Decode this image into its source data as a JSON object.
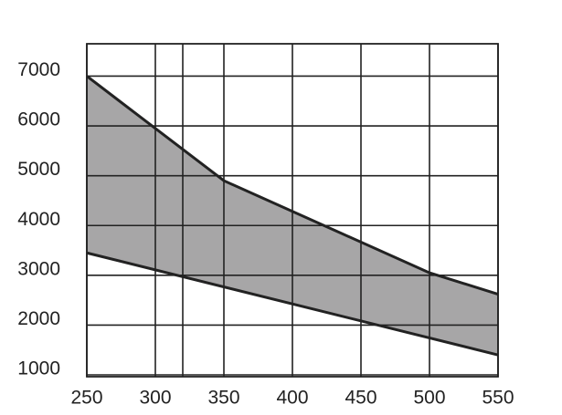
{
  "chart_data": {
    "type": "band",
    "series": [
      {
        "x": [
          250,
          350,
          500,
          550
        ],
        "values": [
          7000,
          4900,
          3050,
          2620
        ]
      },
      {
        "x": [
          250,
          550
        ],
        "values": [
          3450,
          1400
        ]
      }
    ],
    "fill": "#a7a6a7",
    "line_color": "#222222",
    "xlim": [
      250,
      550
    ],
    "xticks": [
      250,
      300,
      350,
      400,
      450,
      500,
      550
    ],
    "xgrid": [
      250,
      300,
      320,
      350,
      400,
      450,
      500,
      550
    ],
    "ylim": [
      1000,
      7650
    ],
    "yticks": [
      1000,
      2000,
      3000,
      4000,
      5000,
      6000,
      7000
    ],
    "grid": true
  }
}
